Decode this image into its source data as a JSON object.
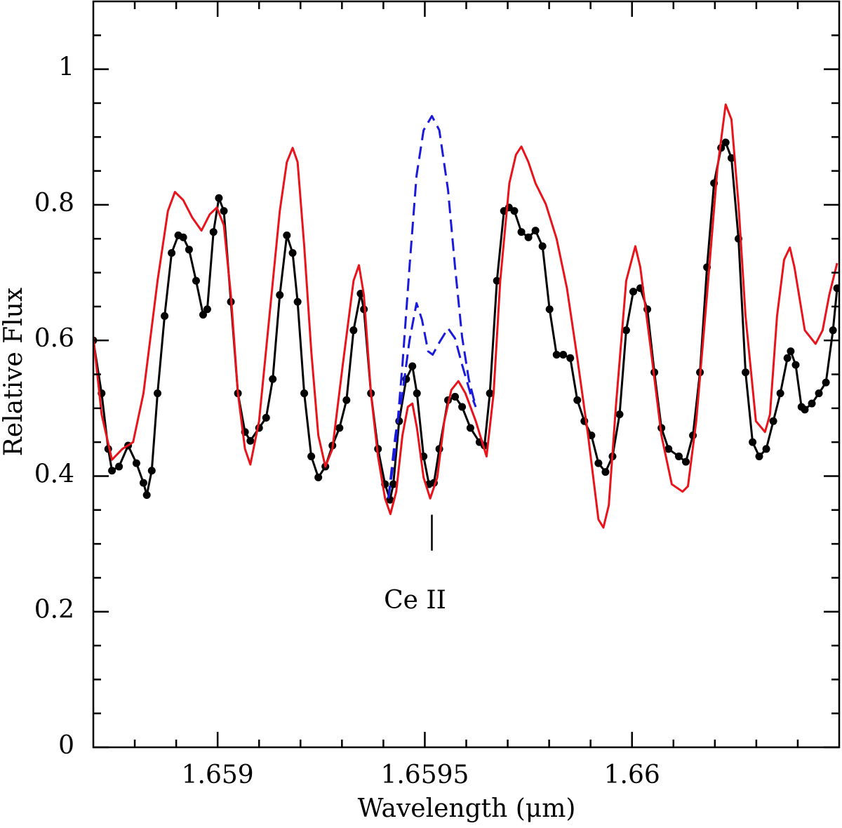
{
  "chart_data": {
    "type": "line",
    "xlabel": "Wavelength (μm)",
    "ylabel": "Relative Flux",
    "xlim": [
      1.6587,
      1.6605
    ],
    "ylim": [
      0,
      1.1
    ],
    "xticks": [
      1.659,
      1.6595,
      1.66
    ],
    "yticks": [
      0,
      0.2,
      0.4,
      0.6,
      0.8,
      1
    ],
    "xminorticks": [
      1.6588,
      1.6589,
      1.6591,
      1.6592,
      1.6593,
      1.6594,
      1.6596,
      1.6597,
      1.6598,
      1.6599,
      1.6601,
      1.6602,
      1.6603,
      1.6604
    ],
    "yminorticks": [
      0.05,
      0.1,
      0.15,
      0.25,
      0.3,
      0.35,
      0.45,
      0.5,
      0.55,
      0.65,
      0.7,
      0.75,
      0.85,
      0.9,
      0.95,
      1.05
    ],
    "series": [
      {
        "color": "#000000",
        "style": "points",
        "x": [
          1.6587,
          1.65872,
          1.658736,
          1.658745,
          1.658762,
          1.658784,
          1.658804,
          1.658821,
          1.658829,
          1.658841,
          1.658855,
          1.658872,
          1.658889,
          1.658905,
          1.658917,
          1.658931,
          1.658948,
          1.658965,
          1.658975,
          1.65899,
          1.659003,
          1.659015,
          1.659032,
          1.659049,
          1.659066,
          1.659079,
          1.6591,
          1.659117,
          1.659133,
          1.65915,
          1.659167,
          1.659181,
          1.659193,
          1.659209,
          1.659226,
          1.659243,
          1.65926,
          1.659277,
          1.659294,
          1.659311,
          1.659328,
          1.659345,
          1.659353,
          1.65937,
          1.659387,
          1.659404,
          1.659416,
          1.659424,
          1.659438,
          1.659455,
          1.65947,
          1.659481,
          1.659497,
          1.65951,
          1.659522,
          1.659535,
          1.659556,
          1.659573,
          1.65959,
          1.65961,
          1.659632,
          1.659644,
          1.659657,
          1.659674,
          1.659691,
          1.659703,
          1.659716,
          1.659733,
          1.65975,
          1.659767,
          1.659784,
          1.659801,
          1.659818,
          1.659834,
          1.659851,
          1.659868,
          1.659885,
          1.659902,
          1.659919,
          1.659936,
          1.659953,
          1.65997,
          1.659986,
          1.660003,
          1.66002,
          1.660037,
          1.660054,
          1.660071,
          1.660088,
          1.660113,
          1.66013,
          1.660147,
          1.660164,
          1.660181,
          1.660198,
          1.660215,
          1.660226,
          1.66024,
          1.660257,
          1.660274,
          1.660291,
          1.660307,
          1.660324,
          1.660341,
          1.660358,
          1.660375,
          1.660383,
          1.660395,
          1.660409,
          1.660417,
          1.660434,
          1.660451,
          1.660468,
          1.660485,
          1.660495
        ],
        "values": [
          0.6,
          0.522,
          0.44,
          0.408,
          0.414,
          0.445,
          0.419,
          0.39,
          0.372,
          0.408,
          0.522,
          0.636,
          0.729,
          0.755,
          0.752,
          0.734,
          0.688,
          0.638,
          0.646,
          0.76,
          0.81,
          0.791,
          0.657,
          0.522,
          0.465,
          0.452,
          0.471,
          0.486,
          0.543,
          0.667,
          0.755,
          0.729,
          0.657,
          0.522,
          0.429,
          0.398,
          0.414,
          0.445,
          0.471,
          0.512,
          0.615,
          0.669,
          0.646,
          0.522,
          0.44,
          0.388,
          0.365,
          0.388,
          0.481,
          0.543,
          0.562,
          0.522,
          0.429,
          0.388,
          0.39,
          0.44,
          0.512,
          0.517,
          0.502,
          0.471,
          0.45,
          0.445,
          0.522,
          0.688,
          0.791,
          0.796,
          0.791,
          0.76,
          0.752,
          0.762,
          0.739,
          0.646,
          0.579,
          0.579,
          0.574,
          0.512,
          0.481,
          0.46,
          0.419,
          0.406,
          0.429,
          0.491,
          0.615,
          0.672,
          0.677,
          0.646,
          0.553,
          0.471,
          0.44,
          0.429,
          0.421,
          0.46,
          0.553,
          0.708,
          0.832,
          0.884,
          0.892,
          0.869,
          0.75,
          0.553,
          0.45,
          0.429,
          0.44,
          0.481,
          0.522,
          0.574,
          0.584,
          0.564,
          0.502,
          0.498,
          0.507,
          0.522,
          0.538,
          0.615,
          0.677
        ]
      },
      {
        "color": "#e8141c",
        "style": "solid",
        "x": [
          1.6587,
          1.65872,
          1.658745,
          1.65877,
          1.658796,
          1.658821,
          1.658855,
          1.65888,
          1.658897,
          1.658917,
          1.658939,
          1.658961,
          1.658981,
          1.658998,
          1.659015,
          1.659032,
          1.659049,
          1.659066,
          1.659079,
          1.6591,
          1.659125,
          1.65915,
          1.659167,
          1.659181,
          1.659193,
          1.659209,
          1.659226,
          1.659243,
          1.65926,
          1.659277,
          1.659302,
          1.659328,
          1.659341,
          1.659353,
          1.65937,
          1.659387,
          1.659404,
          1.659417,
          1.659431,
          1.659446,
          1.659459,
          1.65947,
          1.659481,
          1.659497,
          1.659513,
          1.65953,
          1.659547,
          1.659564,
          1.659581,
          1.659598,
          1.659623,
          1.659649,
          1.659666,
          1.659682,
          1.659704,
          1.65972,
          1.659733,
          1.65975,
          1.659767,
          1.659792,
          1.659818,
          1.659843,
          1.659868,
          1.659894,
          1.659919,
          1.659931,
          1.659944,
          1.659961,
          1.659986,
          1.660008,
          1.66002,
          1.660046,
          1.660071,
          1.660096,
          1.660122,
          1.660135,
          1.660155,
          1.660181,
          1.660206,
          1.660226,
          1.66024,
          1.660257,
          1.660274,
          1.660299,
          1.660321,
          1.660333,
          1.66035,
          1.660367,
          1.660381,
          1.660392,
          1.660417,
          1.660443,
          1.66046,
          1.660476,
          1.660495
        ],
        "values": [
          0.605,
          0.491,
          0.424,
          0.44,
          0.45,
          0.522,
          0.688,
          0.791,
          0.819,
          0.807,
          0.781,
          0.762,
          0.786,
          0.796,
          0.77,
          0.667,
          0.522,
          0.44,
          0.417,
          0.481,
          0.636,
          0.791,
          0.863,
          0.884,
          0.863,
          0.739,
          0.584,
          0.46,
          0.414,
          0.44,
          0.564,
          0.688,
          0.711,
          0.667,
          0.522,
          0.429,
          0.367,
          0.344,
          0.377,
          0.46,
          0.502,
          0.507,
          0.471,
          0.398,
          0.367,
          0.398,
          0.481,
          0.527,
          0.54,
          0.522,
          0.481,
          0.429,
          0.522,
          0.688,
          0.832,
          0.874,
          0.886,
          0.863,
          0.832,
          0.801,
          0.75,
          0.677,
          0.574,
          0.46,
          0.336,
          0.324,
          0.357,
          0.502,
          0.688,
          0.739,
          0.708,
          0.584,
          0.46,
          0.388,
          0.377,
          0.385,
          0.481,
          0.667,
          0.853,
          0.948,
          0.926,
          0.801,
          0.636,
          0.481,
          0.465,
          0.491,
          0.636,
          0.719,
          0.737,
          0.708,
          0.615,
          0.595,
          0.615,
          0.667,
          0.714
        ]
      },
      {
        "color": "#1a1adc",
        "style": "dashed",
        "x": [
          1.659412,
          1.659429,
          1.659446,
          1.659463,
          1.65948,
          1.659497,
          1.659517,
          1.659535,
          1.659556,
          1.659573,
          1.65959,
          1.659606,
          1.659623
        ],
        "values": [
          0.367,
          0.44,
          0.564,
          0.708,
          0.843,
          0.91,
          0.931,
          0.91,
          0.822,
          0.708,
          0.605,
          0.543,
          0.502
        ]
      },
      {
        "color": "#1a1adc",
        "style": "dashed",
        "x": [
          1.659412,
          1.659429,
          1.659446,
          1.659463,
          1.65948,
          1.659493,
          1.659508,
          1.659519,
          1.659535,
          1.659556,
          1.659573,
          1.65959,
          1.65961,
          1.659623
        ],
        "values": [
          0.367,
          0.46,
          0.522,
          0.6,
          0.655,
          0.631,
          0.584,
          0.579,
          0.597,
          0.618,
          0.603,
          0.564,
          0.522,
          0.502
        ]
      }
    ],
    "annotations": [
      {
        "text": "Ce II",
        "x": 1.659517,
        "y": 0.214,
        "line": [
          0.343,
          0.29
        ]
      }
    ]
  }
}
